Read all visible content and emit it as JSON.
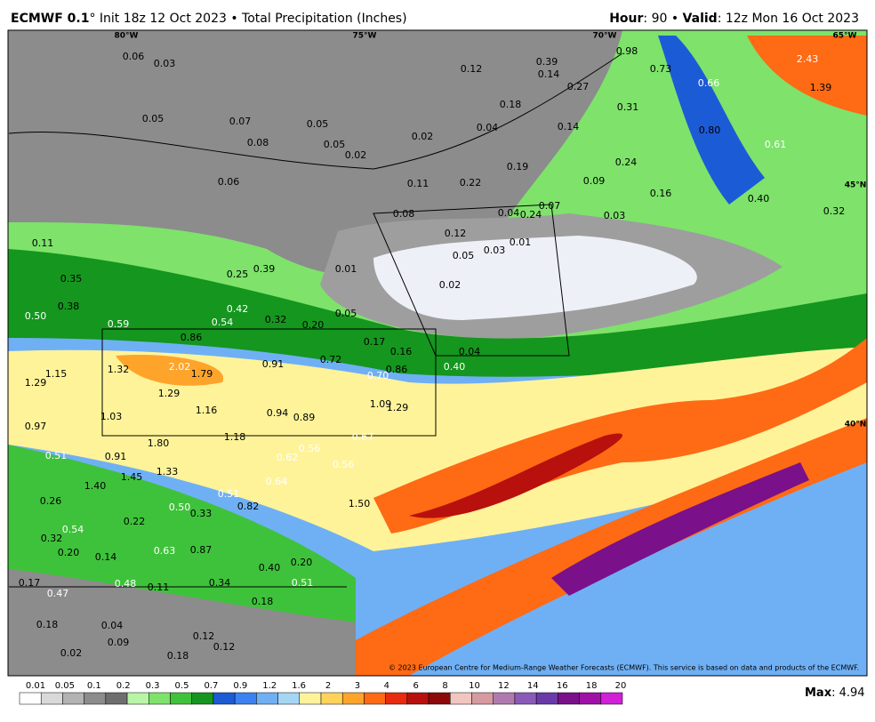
{
  "header": {
    "model": "ECMWF 0.1",
    "init": "° Init 18z 12 Oct 2023 • Total Precipitation (Inches)",
    "hour_label": "Hour",
    "hour": ": 90 • ",
    "valid_label": "Valid",
    "valid": ": 12z Mon 16 Oct 2023"
  },
  "map": {
    "grid_labels": [
      "80°W",
      "75°W",
      "70°W",
      "65°W",
      "45°N",
      "40°N"
    ],
    "point_labels": [
      "0.06",
      "0.03",
      "0.12",
      "0.39",
      "0.14",
      "0.98",
      "2.43",
      "0.73",
      "0.66",
      "1.39",
      "0.27",
      "0.18",
      "0.31",
      "0.05",
      "0.07",
      "0.05",
      "0.02",
      "0.04",
      "0.14",
      "0.80",
      "0.61",
      "0.08",
      "0.05",
      "0.02",
      "0.19",
      "0.24",
      "0.06",
      "0.11",
      "0.22",
      "0.09",
      "0.16",
      "0.40",
      "0.04",
      "0.24",
      "0.07",
      "0.03",
      "0.32",
      "0.08",
      "0.12",
      "0.01",
      "0.03",
      "0.05",
      "0.01",
      "0.02",
      "0.11",
      "0.35",
      "0.25",
      "0.39",
      "0.50",
      "0.38",
      "0.59",
      "0.42",
      "0.54",
      "0.32",
      "0.20",
      "0.05",
      "0.86",
      "0.17",
      "0.16",
      "0.04",
      "0.40",
      "1.32",
      "2.02",
      "1.79",
      "0.91",
      "0.72",
      "0.86",
      "0.70",
      "1.15",
      "1.29",
      "1.29",
      "1.16",
      "0.94",
      "0.89",
      "1.09",
      "1.29",
      "1.03",
      "0.97",
      "1.80",
      "1.18",
      "0.67",
      "0.56",
      "0.51",
      "0.91",
      "0.62",
      "0.56",
      "1.33",
      "1.45",
      "1.40",
      "0.64",
      "0.51",
      "0.50",
      "0.33",
      "0.82",
      "1.50",
      "0.26",
      "0.22",
      "0.54",
      "0.32",
      "0.20",
      "0.14",
      "0.63",
      "0.87",
      "0.40",
      "0.20",
      "0.17",
      "0.47",
      "0.48",
      "0.11",
      "0.34",
      "0.51",
      "0.18",
      "0.04",
      "0.12",
      "0.09",
      "0.12",
      "0.18",
      "0.02",
      "0.18"
    ],
    "copyright": "© 2023 European Centre for Medium-Range Weather Forecasts (ECMWF). This service is based on data and products of the ECMWF."
  },
  "colorbar": {
    "labels": [
      "0.01",
      "0.05",
      "0.1",
      "0.2",
      "0.3",
      "0.5",
      "0.7",
      "0.9",
      "1.2",
      "1.6",
      "2",
      "3",
      "4",
      "6",
      "8",
      "10",
      "12",
      "14",
      "16",
      "18",
      "20"
    ],
    "colors": [
      "#ffffff",
      "#d9d9d9",
      "#b3b3b3",
      "#8c8c8c",
      "#6e6e6e",
      "#b8f5a6",
      "#7ee26b",
      "#3fc23b",
      "#15961e",
      "#1c5bd6",
      "#3b82f0",
      "#6fb0f5",
      "#a6d6f5",
      "#fff39a",
      "#ffd35a",
      "#ffa42a",
      "#ff6a14",
      "#e82a0f",
      "#b8100c",
      "#8c0a08",
      "#f2c6c0",
      "#d69aa0",
      "#b07ab0",
      "#8a5ab8",
      "#6a3aa8",
      "#7a108a",
      "#a010a8",
      "#d020d8"
    ],
    "max_label": "Max",
    "max_value": ": 4.94"
  }
}
